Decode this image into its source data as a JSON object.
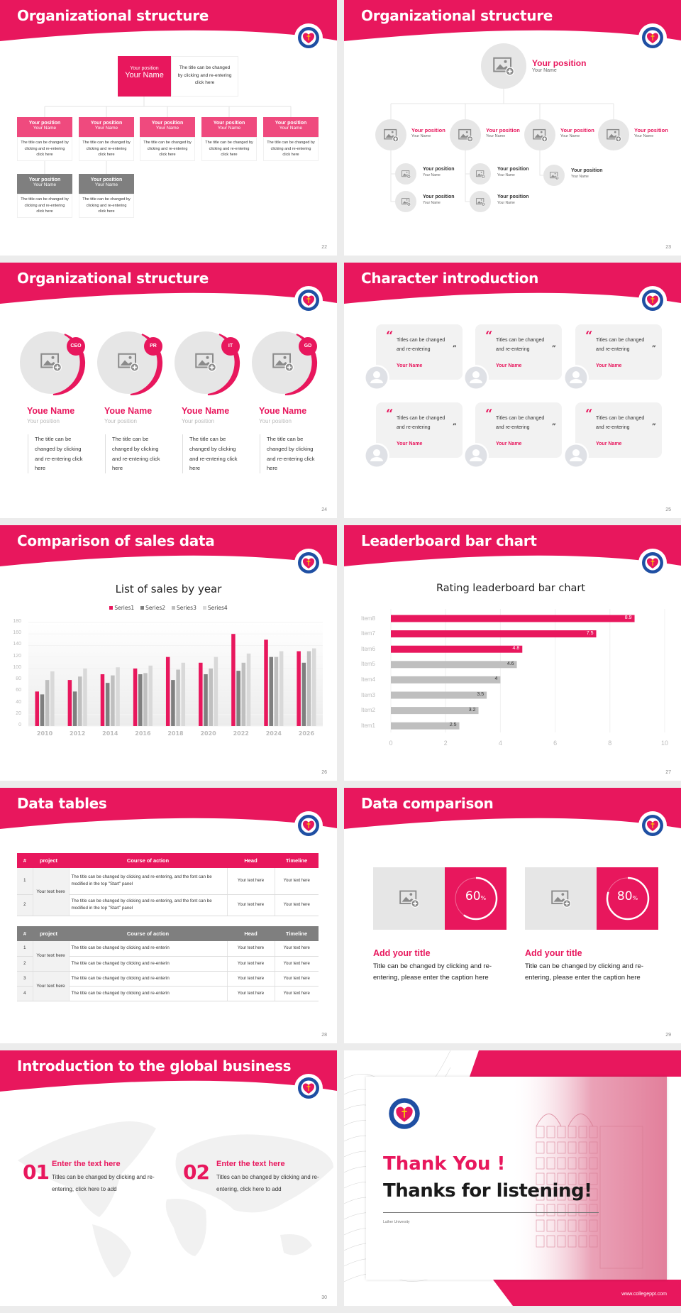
{
  "theme": {
    "accent": "#E8175D",
    "dark_gray": "#7F7F7F",
    "light_gray": "#E6E6E6"
  },
  "s22": {
    "title": "Organizational structure",
    "page": "22",
    "top": {
      "position": "Your position",
      "name": "Your Name",
      "desc": "The title can be changed by clicking and re-entering click here"
    },
    "row1": [
      {
        "position": "Your position",
        "name": "Your Name",
        "desc": "The title can be changed by clicking and re-entering click here"
      },
      {
        "position": "Your position",
        "name": "Your Name",
        "desc": "The title can be changed by clicking and re-entering click here"
      },
      {
        "position": "Your position",
        "name": "Your Name",
        "desc": "The title can be changed by clicking and re-entering click here"
      },
      {
        "position": "Your position",
        "name": "Your Name",
        "desc": "The title can be changed by clicking and re-entering click here"
      },
      {
        "position": "Your position",
        "name": "Your Name",
        "desc": "The title can be changed by clicking and re-entering click here"
      }
    ],
    "row2": [
      {
        "position": "Your position",
        "name": "Your Name",
        "desc": "The title can be changed by clicking and re-entering click here"
      },
      {
        "position": "Your position",
        "name": "Your Name",
        "desc": "The title can be changed by clicking and re-entering click here"
      }
    ]
  },
  "s23": {
    "title": "Organizational structure",
    "page": "23",
    "top": {
      "position": "Your position",
      "name": "Your Name"
    },
    "level2": [
      {
        "position": "Your position",
        "name": "Your Name"
      },
      {
        "position": "Your position",
        "name": "Your Name"
      },
      {
        "position": "Your position",
        "name": "Your Name"
      },
      {
        "position": "Your position",
        "name": "Your Name"
      }
    ],
    "level3": [
      {
        "position": "Your position",
        "name": "Your Name"
      },
      {
        "position": "Your position",
        "name": "Your Name"
      },
      {
        "position": "Your position",
        "name": "Your Name"
      },
      {
        "position": "Your position",
        "name": "Your Name"
      },
      {
        "position": "Your position",
        "name": "Your Name"
      }
    ]
  },
  "s24": {
    "title": "Organizational structure",
    "page": "24",
    "people": [
      {
        "badge": "CEO",
        "name": "Youe Name",
        "position": "Your position",
        "desc": "The title can be changed by clicking and re-entering click here"
      },
      {
        "badge": "PR",
        "name": "Youe Name",
        "position": "Your position",
        "desc": "The title can be changed by clicking and re-entering click here"
      },
      {
        "badge": "IT",
        "name": "Youe Name",
        "position": "Your position",
        "desc": "The title can be changed by clicking and re-entering click here"
      },
      {
        "badge": "GD",
        "name": "Youe Name",
        "position": "Your position",
        "desc": "The title can be changed by clicking and re-entering click here"
      }
    ]
  },
  "s25": {
    "title": "Character introduction",
    "page": "25",
    "cards": [
      {
        "quote": "Titles can be changed and re-entering",
        "name": "Your Name"
      },
      {
        "quote": "Titles can be changed and re-entering",
        "name": "Your Name"
      },
      {
        "quote": "Titles can be changed and re-entering",
        "name": "Your Name"
      },
      {
        "quote": "Titles can be changed and re-entering",
        "name": "Your Name"
      },
      {
        "quote": "Titles can be changed and re-entering",
        "name": "Your Name"
      },
      {
        "quote": "Titles can be changed and re-entering",
        "name": "Your Name"
      }
    ]
  },
  "s26": {
    "title": "Comparison of sales data",
    "page": "26"
  },
  "s27": {
    "title": "Leaderboard bar chart",
    "page": "27"
  },
  "s28": {
    "title": "Data tables",
    "page": "28",
    "headers": [
      "#",
      "project",
      "Course of action",
      "Head",
      "Timeline"
    ],
    "table1": {
      "project": "Your text here",
      "rows": [
        {
          "n": "1",
          "action": "The title can be changed by clicking and re-entering, and the font can be modified in the top \"Start\" panel",
          "head": "Your text here",
          "timeline": "Your text here"
        },
        {
          "n": "2",
          "action": "The title can be changed by clicking and re-entering, and the font can be modified in the top \"Start\" panel",
          "head": "Your text here",
          "timeline": "Your text here"
        }
      ]
    },
    "table2": {
      "projects": [
        "Your text here",
        "Your text here"
      ],
      "rows": [
        {
          "n": "1",
          "action": "The title can be changed by clicking and re-enterin",
          "head": "Your text here",
          "timeline": "Your text here"
        },
        {
          "n": "2",
          "action": "The title can be changed by clicking and re-enterin",
          "head": "Your text here",
          "timeline": "Your text here"
        },
        {
          "n": "3",
          "action": "The title can be changed by clicking and re-enterin",
          "head": "Your text here",
          "timeline": "Your text here"
        },
        {
          "n": "4",
          "action": "The title can be changed by clicking and re-enterin",
          "head": "Your text here",
          "timeline": "Your text here"
        }
      ]
    }
  },
  "s29": {
    "title": "Data comparison",
    "page": "29",
    "items": [
      {
        "percent": 60,
        "value": "60",
        "unit": "%",
        "heading": "Add your title",
        "desc": "Title can be changed by clicking and re-entering, please enter the caption here"
      },
      {
        "percent": 80,
        "value": "80",
        "unit": "%",
        "heading": "Add your title",
        "desc": "Title can be changed by clicking and re-entering, please enter the caption here"
      }
    ]
  },
  "s30": {
    "title": "Introduction to the global business",
    "page": "30",
    "items": [
      {
        "num": "01",
        "heading": "Enter the text here",
        "desc": "Titles can be changed by clicking and re-entering, click here to add"
      },
      {
        "num": "02",
        "heading": "Enter the text here",
        "desc": "Titles can be changed by clicking and re-entering, click here to add"
      }
    ]
  },
  "s31": {
    "thank": "Thank You !",
    "thanks": "Thanks for listening!",
    "university": "Luther University",
    "website": "www.collegeppt.com"
  },
  "chart_data": [
    {
      "type": "bar",
      "title": "List of sales by year",
      "xlabel": "",
      "ylabel": "",
      "categories": [
        "2010",
        "2012",
        "2014",
        "2016",
        "2018",
        "2020",
        "2022",
        "2024",
        "2026"
      ],
      "ylim": [
        0,
        180
      ],
      "yticks": [
        0,
        20,
        40,
        60,
        80,
        100,
        120,
        140,
        160,
        180
      ],
      "legend": "top",
      "grid": true,
      "series": [
        {
          "name": "Series1",
          "color": "#E8175D",
          "values": [
            60,
            80,
            90,
            100,
            120,
            110,
            160,
            150,
            130
          ]
        },
        {
          "name": "Series2",
          "color": "#7F7F7F",
          "values": [
            55,
            60,
            75,
            90,
            80,
            90,
            96,
            120,
            110
          ]
        },
        {
          "name": "Series3",
          "color": "#BFBFBF",
          "values": [
            80,
            86,
            88,
            92,
            98,
            100,
            110,
            120,
            130
          ]
        },
        {
          "name": "Series4",
          "color": "#D9D9D9",
          "values": [
            95,
            100,
            102,
            105,
            110,
            120,
            126,
            130,
            135
          ]
        }
      ]
    },
    {
      "type": "bar",
      "orientation": "horizontal",
      "title": "Rating leaderboard bar chart",
      "xlabel": "",
      "ylabel": "",
      "categories": [
        "Item8",
        "Item7",
        "Item6",
        "Item5",
        "Item4",
        "Item3",
        "Item2",
        "Item1"
      ],
      "values": [
        8.9,
        7.5,
        4.8,
        4.6,
        4,
        3.5,
        3.2,
        2.5
      ],
      "labels": [
        "8.9",
        "7.5",
        "4.8",
        "4.6",
        "4",
        "3.5",
        "3.2",
        "2.5"
      ],
      "highlight_color": "#E8175D",
      "base_color": "#BFBFBF",
      "highlight_count": 3,
      "xlim": [
        0,
        10
      ],
      "xticks": [
        0,
        2,
        4,
        6,
        8,
        10
      ],
      "grid": true
    }
  ]
}
